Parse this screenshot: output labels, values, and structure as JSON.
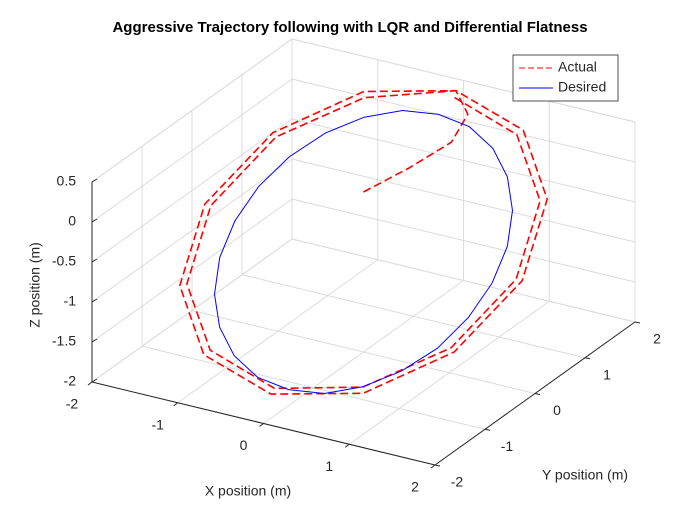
{
  "chart_data": {
    "type": "line3d",
    "title": "Aggressive Trajectory following with LQR and Differential Flatness",
    "xlabel": "X position (m)",
    "ylabel": "Y position (m)",
    "zlabel": "Z position (m)",
    "xlim": [
      -2,
      2
    ],
    "ylim": [
      -2,
      2
    ],
    "zlim": [
      -2,
      0.5
    ],
    "xticks": [
      -2,
      -1,
      0,
      1,
      2
    ],
    "yticks": [
      -2,
      -1,
      0,
      1,
      2
    ],
    "zticks": [
      -2,
      -1.5,
      -1,
      -0.5,
      0,
      0.5
    ],
    "grid": true,
    "legend": "upper right",
    "series": [
      {
        "name": "Actual",
        "color": "#ff0000",
        "dashed": true,
        "x": [
          0,
          0.3,
          0.5,
          0.4,
          0,
          -0.93,
          -1.6,
          -1.85,
          -1.6,
          -0.93,
          0,
          0.93,
          1.6,
          1.85,
          1.6,
          0.93,
          0,
          -0.89,
          -1.54,
          -1.78,
          -1.54,
          -0.89,
          0,
          0.89,
          1.54,
          1.78,
          1.54,
          0.89,
          0
        ],
        "y": [
          0,
          0.4,
          0.9,
          1.4,
          1.85,
          1.6,
          0.93,
          0,
          -0.93,
          -1.6,
          -1.85,
          -1.6,
          -0.93,
          0,
          0.93,
          1.6,
          1.85,
          1.54,
          0.89,
          0,
          -0.89,
          -1.54,
          -1.78,
          -1.54,
          -0.89,
          0,
          0.89,
          1.54,
          1.78
        ],
        "z": [
          0,
          0.2,
          0.35,
          0.45,
          0.44,
          0.3,
          -0.09,
          -0.63,
          -1.17,
          -1.56,
          -1.7,
          -1.56,
          -1.17,
          -0.63,
          -0.09,
          0.3,
          0.44,
          0.26,
          -0.11,
          -0.63,
          -1.15,
          -1.52,
          -1.66,
          -1.52,
          -1.15,
          -0.63,
          -0.11,
          0.26,
          0.4
        ]
      },
      {
        "name": "Desired",
        "color": "#0000ff",
        "dashed": false,
        "x": [
          1.5,
          1.45,
          1.3,
          1.06,
          0.75,
          0.39,
          0,
          -0.39,
          -0.75,
          -1.06,
          -1.3,
          -1.45,
          -1.5,
          -1.45,
          -1.3,
          -1.06,
          -0.75,
          -0.39,
          0,
          0.39,
          0.75,
          1.06,
          1.3,
          1.45,
          1.5
        ],
        "y": [
          0,
          0.39,
          0.75,
          1.06,
          1.3,
          1.45,
          1.5,
          1.45,
          1.3,
          1.06,
          0.75,
          0.39,
          0,
          -0.39,
          -0.75,
          -1.06,
          -1.3,
          -1.45,
          -1.5,
          -1.45,
          -1.3,
          -1.06,
          -0.75,
          -0.39,
          0
        ],
        "z": [
          -0.75,
          -0.48,
          -0.23,
          -0.01,
          0.16,
          0.27,
          0.3,
          0.27,
          0.16,
          -0.01,
          -0.23,
          -0.48,
          -0.75,
          -1.02,
          -1.28,
          -1.49,
          -1.66,
          -1.77,
          -1.8,
          -1.77,
          -1.66,
          -1.49,
          -1.28,
          -1.02,
          -0.75
        ]
      }
    ]
  }
}
